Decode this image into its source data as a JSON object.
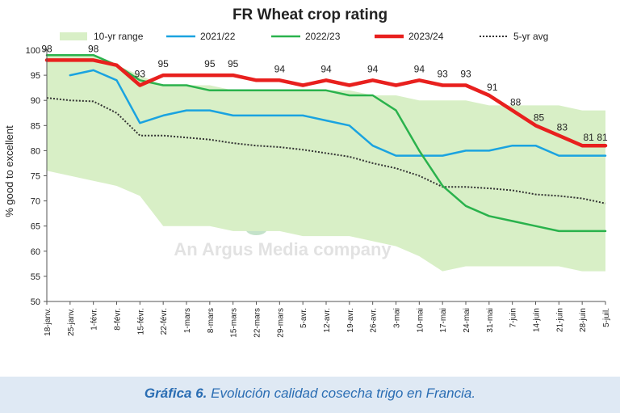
{
  "chart_data": {
    "type": "line",
    "title": "FR Wheat crop rating",
    "ylabel": "% good to excellent",
    "xlabel": "",
    "ylim": [
      50,
      100
    ],
    "yticks": [
      50,
      55,
      60,
      65,
      70,
      75,
      80,
      85,
      90,
      95,
      100
    ],
    "grid": false,
    "legend_position": "top",
    "x": [
      "18-janv.",
      "25-janv.",
      "1-févr.",
      "8-févr.",
      "15-févr.",
      "22-févr.",
      "1-mars",
      "8-mars",
      "15-mars",
      "22-mars",
      "29-mars",
      "5-avr.",
      "12-avr.",
      "19-avr.",
      "26-avr.",
      "3-mai",
      "10-mai",
      "17-mai",
      "24-mai",
      "31-mai",
      "7-juin",
      "14-juin",
      "21-juin",
      "28-juin",
      "5-juil."
    ],
    "range": {
      "name": "10-yr range",
      "color": "#d8efc6",
      "low": [
        76,
        75,
        74,
        73,
        71,
        65,
        65,
        65,
        64,
        64,
        64,
        63,
        63,
        63,
        62,
        61,
        59,
        56,
        57,
        57,
        57,
        57,
        57,
        56,
        56
      ],
      "high": [
        99,
        99,
        99,
        97,
        95,
        93,
        93,
        93,
        92,
        92,
        92,
        92,
        92,
        92,
        91,
        91,
        90,
        90,
        90,
        89,
        89,
        89,
        89,
        88,
        88
      ]
    },
    "series": [
      {
        "name": "2021/22",
        "color": "#1aa3e0",
        "dash": "",
        "width": 2.5,
        "values": [
          null,
          95,
          96,
          94,
          85.5,
          87,
          88,
          88,
          87,
          87,
          87,
          87,
          86,
          85,
          81,
          79,
          79,
          79,
          80,
          80,
          81,
          81,
          79,
          79,
          79
        ]
      },
      {
        "name": "2022/23",
        "color": "#2ab24c",
        "dash": "",
        "width": 2.5,
        "values": [
          99,
          99,
          99,
          97,
          94,
          93,
          93,
          92,
          92,
          92,
          92,
          92,
          92,
          91,
          91,
          88,
          80,
          73,
          69,
          67,
          66,
          65,
          64,
          64,
          64
        ]
      },
      {
        "name": "2023/24",
        "color": "#e8201e",
        "dash": "",
        "width": 4.5,
        "values": [
          98,
          98,
          98,
          97,
          93,
          95,
          95,
          95,
          95,
          94,
          94,
          93,
          94,
          93,
          94,
          93,
          94,
          93,
          93,
          91,
          88,
          85,
          83,
          81,
          81
        ]
      },
      {
        "name": "5-yr avg",
        "color": "#333333",
        "dash": "2,2",
        "width": 2,
        "values": [
          90.5,
          90,
          89.8,
          87.5,
          83,
          83,
          82.6,
          82.2,
          81.5,
          81,
          80.7,
          80.2,
          79.5,
          78.8,
          77.5,
          76.5,
          75,
          72.8,
          72.8,
          72.5,
          72.1,
          71.3,
          71,
          70.5,
          69.5
        ]
      }
    ],
    "data_labels": [
      {
        "index": 0,
        "text": "98"
      },
      {
        "index": 2,
        "text": "98"
      },
      {
        "index": 4,
        "text": "93"
      },
      {
        "index": 5,
        "text": "95"
      },
      {
        "index": 7,
        "text": "95"
      },
      {
        "index": 8,
        "text": "95"
      },
      {
        "index": 10,
        "text": "94"
      },
      {
        "index": 12,
        "text": "94"
      },
      {
        "index": 14,
        "text": "94"
      },
      {
        "index": 16,
        "text": "94"
      },
      {
        "index": 17,
        "text": "93"
      },
      {
        "index": 18,
        "text": "93"
      },
      {
        "index": 19,
        "text": "91"
      },
      {
        "index": 20,
        "text": "88"
      },
      {
        "index": 21,
        "text": "85"
      },
      {
        "index": 22,
        "text": "83"
      },
      {
        "index": 23,
        "text": "81"
      },
      {
        "index": 24,
        "text": "81"
      }
    ]
  },
  "watermark": {
    "logo_text": "gritel",
    "tagline": "An Argus Media company"
  },
  "caption": {
    "lead": "Gráfica 6.",
    "text": " Evolución calidad cosecha trigo en Francia."
  }
}
